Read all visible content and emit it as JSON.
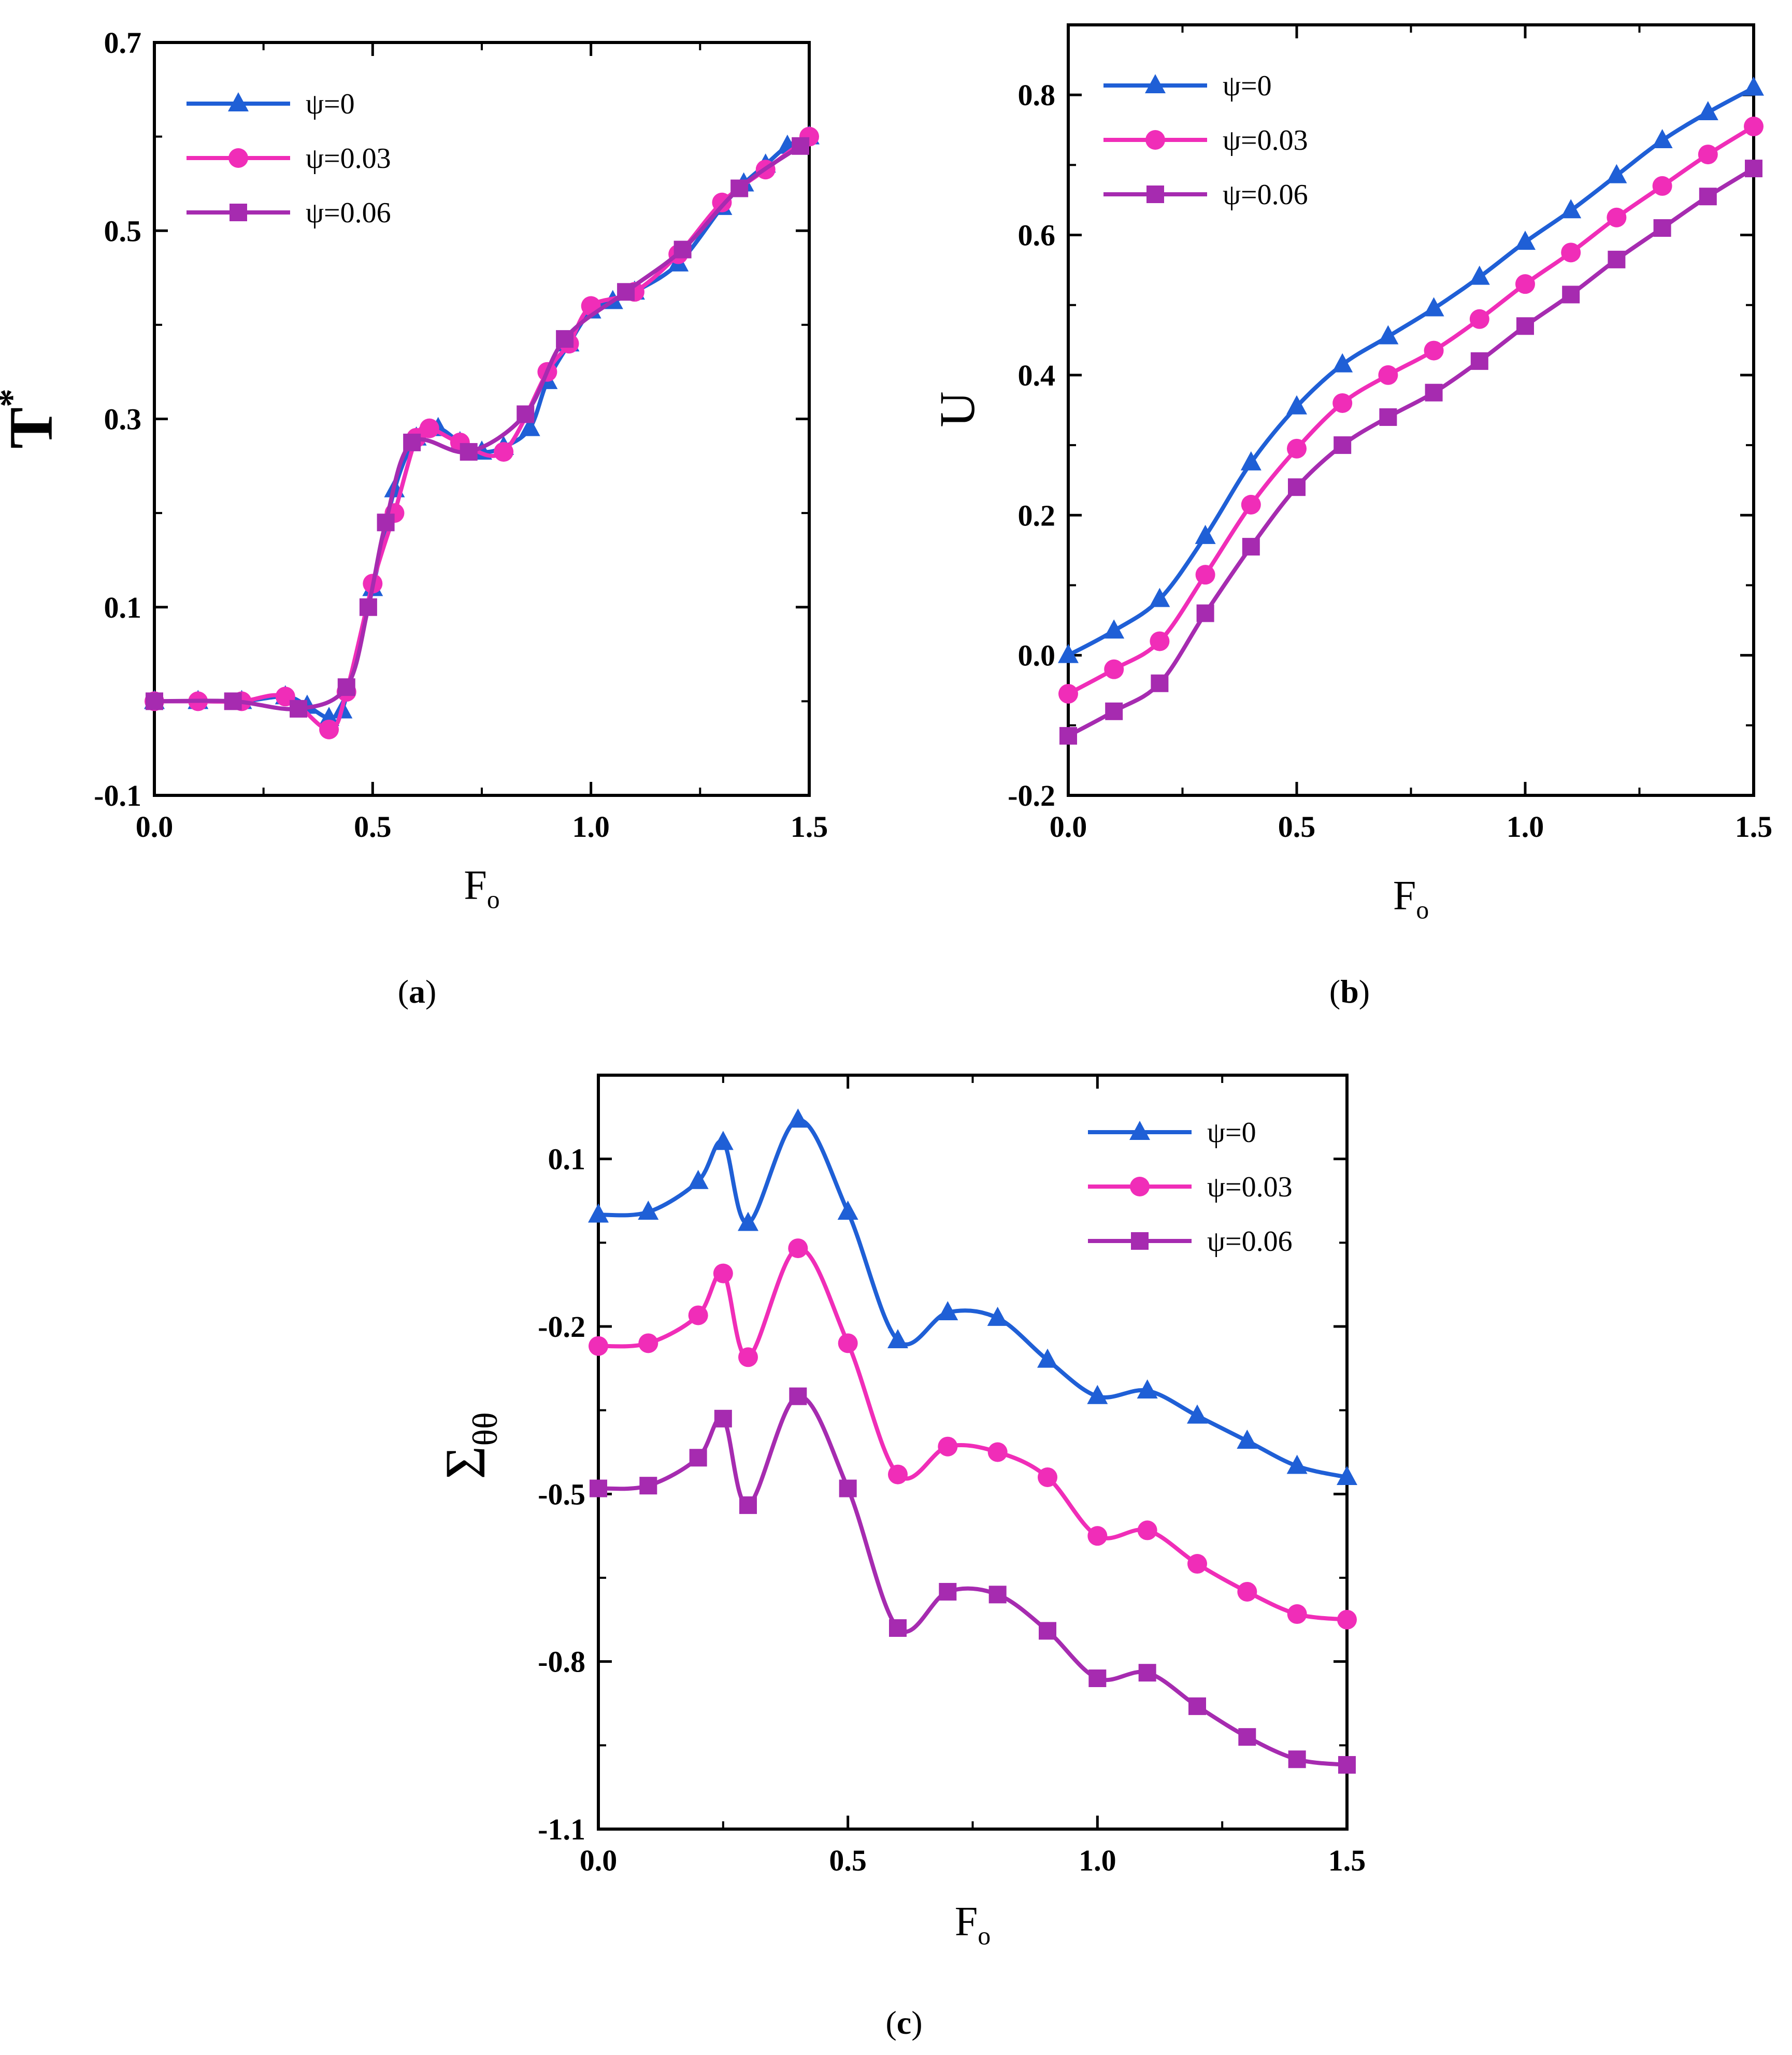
{
  "figure": {
    "panels": [
      {
        "label_open": "(",
        "label_letter": "a",
        "label_close": ")"
      },
      {
        "label_open": "(",
        "label_letter": "b",
        "label_close": ")"
      },
      {
        "label_open": "(",
        "label_letter": "c",
        "label_close": ")"
      }
    ]
  },
  "chart_data": [
    {
      "type": "line",
      "panel": "a",
      "ylabel": "T",
      "ylabel_sup": "*",
      "xlabel": "F",
      "xlabel_sub": "o",
      "xlim": [
        0,
        1.5
      ],
      "ylim": [
        -0.1,
        0.7
      ],
      "xticks": [
        0,
        0.5,
        1.0,
        1.5
      ],
      "xtick_labels": [
        "0.0",
        "0.5",
        "1.0",
        "1.5"
      ],
      "yticks": [
        -0.1,
        0.1,
        0.3,
        0.5,
        0.7
      ],
      "ytick_labels": [
        "-0.1",
        "0.1",
        "0.3",
        "0.5",
        "0.7"
      ],
      "legend_position": "top-left",
      "series": [
        {
          "name": "ψ=0",
          "color": "#1f5fd6",
          "marker": "triangle",
          "x": [
            0,
            0.1,
            0.2,
            0.3,
            0.35,
            0.4,
            0.43,
            0.5,
            0.55,
            0.6,
            0.65,
            0.7,
            0.75,
            0.8,
            0.86,
            0.9,
            0.95,
            1.0,
            1.05,
            1.1,
            1.2,
            1.3,
            1.35,
            1.4,
            1.45,
            1.5
          ],
          "y": [
            0,
            0,
            0,
            0.005,
            -0.005,
            -0.018,
            -0.01,
            0.12,
            0.225,
            0.28,
            0.29,
            0.275,
            0.265,
            0.27,
            0.29,
            0.34,
            0.38,
            0.415,
            0.425,
            0.435,
            0.465,
            0.525,
            0.55,
            0.57,
            0.59,
            0.6
          ]
        },
        {
          "name": "ψ=0.03",
          "color": "#f02db8",
          "marker": "circle",
          "x": [
            0,
            0.1,
            0.2,
            0.3,
            0.4,
            0.44,
            0.5,
            0.55,
            0.6,
            0.63,
            0.7,
            0.8,
            0.9,
            0.95,
            1.0,
            1.1,
            1.2,
            1.3,
            1.4,
            1.5
          ],
          "y": [
            0,
            0,
            0,
            0.005,
            -0.03,
            0.01,
            0.125,
            0.2,
            0.28,
            0.29,
            0.275,
            0.265,
            0.35,
            0.38,
            0.42,
            0.435,
            0.475,
            0.53,
            0.565,
            0.6
          ]
        },
        {
          "name": "ψ=0.06",
          "color": "#a62bb0",
          "marker": "square",
          "x": [
            0,
            0.18,
            0.33,
            0.44,
            0.49,
            0.53,
            0.59,
            0.72,
            0.85,
            0.94,
            1.08,
            1.21,
            1.34,
            1.48
          ],
          "y": [
            0,
            0,
            -0.008,
            0.015,
            0.1,
            0.19,
            0.275,
            0.265,
            0.305,
            0.385,
            0.435,
            0.48,
            0.545,
            0.59
          ]
        }
      ]
    },
    {
      "type": "line",
      "panel": "b",
      "ylabel": "U",
      "xlabel": "F",
      "xlabel_sub": "o",
      "xlim": [
        0,
        1.5
      ],
      "ylim": [
        -0.2,
        0.9
      ],
      "xticks": [
        0,
        0.5,
        1.0,
        1.5
      ],
      "xtick_labels": [
        "0.0",
        "0.5",
        "1.0",
        "1.5"
      ],
      "yticks": [
        -0.2,
        0.0,
        0.2,
        0.4,
        0.6,
        0.8
      ],
      "ytick_labels": [
        "-0.2",
        "0.0",
        "0.2",
        "0.4",
        "0.6",
        "0.8"
      ],
      "legend_position": "top-left",
      "series": [
        {
          "name": "ψ=0",
          "color": "#1f5fd6",
          "marker": "triangle",
          "x": [
            0,
            0.1,
            0.2,
            0.3,
            0.4,
            0.5,
            0.6,
            0.7,
            0.8,
            0.9,
            1.0,
            1.1,
            1.2,
            1.3,
            1.4,
            1.5
          ],
          "y": [
            0.0,
            0.035,
            0.08,
            0.17,
            0.275,
            0.355,
            0.415,
            0.455,
            0.495,
            0.54,
            0.59,
            0.635,
            0.685,
            0.735,
            0.775,
            0.81
          ]
        },
        {
          "name": "ψ=0.03",
          "color": "#f02db8",
          "marker": "circle",
          "x": [
            0,
            0.1,
            0.2,
            0.3,
            0.4,
            0.5,
            0.6,
            0.7,
            0.8,
            0.9,
            1.0,
            1.1,
            1.2,
            1.3,
            1.4,
            1.5
          ],
          "y": [
            -0.055,
            -0.02,
            0.02,
            0.115,
            0.215,
            0.295,
            0.36,
            0.4,
            0.435,
            0.48,
            0.53,
            0.575,
            0.625,
            0.67,
            0.715,
            0.755
          ]
        },
        {
          "name": "ψ=0.06",
          "color": "#a62bb0",
          "marker": "square",
          "x": [
            0,
            0.1,
            0.2,
            0.3,
            0.4,
            0.5,
            0.6,
            0.7,
            0.8,
            0.9,
            1.0,
            1.1,
            1.2,
            1.3,
            1.4,
            1.5
          ],
          "y": [
            -0.115,
            -0.08,
            -0.04,
            0.06,
            0.155,
            0.24,
            0.3,
            0.34,
            0.375,
            0.42,
            0.47,
            0.515,
            0.565,
            0.61,
            0.655,
            0.695
          ]
        }
      ]
    },
    {
      "type": "line",
      "panel": "c",
      "ylabel": "Σ",
      "ylabel_sub": "θθ",
      "xlabel": "F",
      "xlabel_sub": "o",
      "xlim": [
        0,
        1.5
      ],
      "ylim": [
        -1.1,
        0.25
      ],
      "xticks": [
        0,
        0.5,
        1.0,
        1.5
      ],
      "xtick_labels": [
        "0.0",
        "0.5",
        "1.0",
        "1.5"
      ],
      "yticks": [
        -1.1,
        -0.8,
        -0.5,
        -0.2,
        0.1
      ],
      "ytick_labels": [
        "-1.1",
        "-0.8",
        "-0.5",
        "-0.2",
        "0.1"
      ],
      "legend_position": "top-right",
      "series": [
        {
          "name": "ψ=0",
          "color": "#1f5fd6",
          "marker": "triangle",
          "x": [
            0,
            0.1,
            0.2,
            0.25,
            0.3,
            0.4,
            0.5,
            0.6,
            0.7,
            0.8,
            0.9,
            1.0,
            1.1,
            1.2,
            1.3,
            1.4,
            1.5
          ],
          "y": [
            0.0,
            0.005,
            0.06,
            0.13,
            -0.015,
            0.17,
            0.005,
            -0.225,
            -0.175,
            -0.185,
            -0.26,
            -0.325,
            -0.315,
            -0.36,
            -0.405,
            -0.45,
            -0.47
          ]
        },
        {
          "name": "ψ=0.03",
          "color": "#f02db8",
          "marker": "circle",
          "x": [
            0,
            0.1,
            0.2,
            0.25,
            0.3,
            0.4,
            0.5,
            0.6,
            0.7,
            0.8,
            0.9,
            1.0,
            1.1,
            1.2,
            1.3,
            1.4,
            1.5
          ],
          "y": [
            -0.235,
            -0.23,
            -0.18,
            -0.105,
            -0.255,
            -0.06,
            -0.23,
            -0.465,
            -0.415,
            -0.425,
            -0.47,
            -0.575,
            -0.565,
            -0.625,
            -0.675,
            -0.715,
            -0.725
          ]
        },
        {
          "name": "ψ=0.06",
          "color": "#a62bb0",
          "marker": "square",
          "x": [
            0,
            0.1,
            0.2,
            0.25,
            0.3,
            0.4,
            0.5,
            0.6,
            0.7,
            0.8,
            0.9,
            1.0,
            1.1,
            1.2,
            1.3,
            1.4,
            1.5
          ],
          "y": [
            -0.49,
            -0.485,
            -0.435,
            -0.365,
            -0.52,
            -0.325,
            -0.49,
            -0.74,
            -0.675,
            -0.68,
            -0.745,
            -0.83,
            -0.82,
            -0.88,
            -0.935,
            -0.975,
            -0.985
          ]
        }
      ]
    }
  ]
}
